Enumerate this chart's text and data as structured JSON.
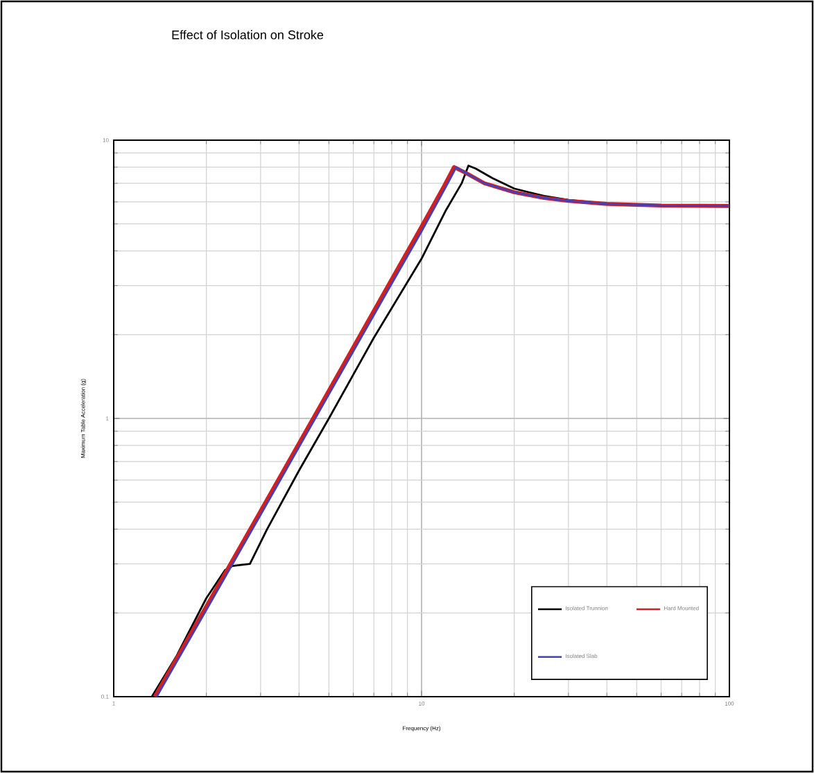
{
  "chart_data": {
    "type": "line",
    "title": "Effect of Isolation on Stroke",
    "xlabel": "Frequency (Hz)",
    "ylabel": "Maximum Table Acceleration (g)",
    "log": "xy",
    "grid": true,
    "legend": "bottom right",
    "marker": "none",
    "line_style": "solid",
    "xlim": [
      1,
      100
    ],
    "ylim": [
      0.1,
      10
    ],
    "xticks": [
      1,
      10,
      100
    ],
    "yticks": [
      0.1,
      1,
      10
    ],
    "series": [
      {
        "name": "Isolated Trunnion",
        "color": "#000000",
        "x": [
          1.33,
          1.6,
          2,
          2.3,
          2.43,
          2.77,
          3.15,
          4,
          5,
          7,
          10,
          12,
          13.5,
          14.2,
          15,
          17,
          20,
          25,
          30,
          40,
          60,
          100
        ],
        "values": [
          0.1,
          0.14,
          0.226,
          0.285,
          0.295,
          0.3,
          0.4,
          0.65,
          1.0,
          1.95,
          3.75,
          5.6,
          7.0,
          8.1,
          7.9,
          7.3,
          6.7,
          6.3,
          6.1,
          5.92,
          5.83,
          5.8
        ]
      },
      {
        "name": "Hard Mounted",
        "color": "#d02020",
        "x": [
          1.36,
          1.97,
          2.95,
          4.92,
          7.85,
          9.8,
          10.8,
          11.8,
          12.75,
          14,
          16,
          20,
          25,
          30,
          40,
          60,
          100
        ],
        "values": [
          0.1,
          0.205,
          0.45,
          1.22,
          3.05,
          4.7,
          5.7,
          6.8,
          8.0,
          7.6,
          7.0,
          6.5,
          6.2,
          6.05,
          5.9,
          5.82,
          5.8
        ]
      },
      {
        "name": "Isolated Slab",
        "color": "#4040c0",
        "x": [
          1.38,
          2,
          3,
          5,
          8,
          10,
          11,
          12,
          12.97,
          14,
          16,
          20,
          25,
          30,
          40,
          60,
          100
        ],
        "values": [
          0.1,
          0.205,
          0.45,
          1.22,
          3.05,
          4.7,
          5.7,
          6.8,
          8.0,
          7.6,
          7.0,
          6.5,
          6.2,
          6.05,
          5.9,
          5.82,
          5.8
        ]
      }
    ]
  }
}
